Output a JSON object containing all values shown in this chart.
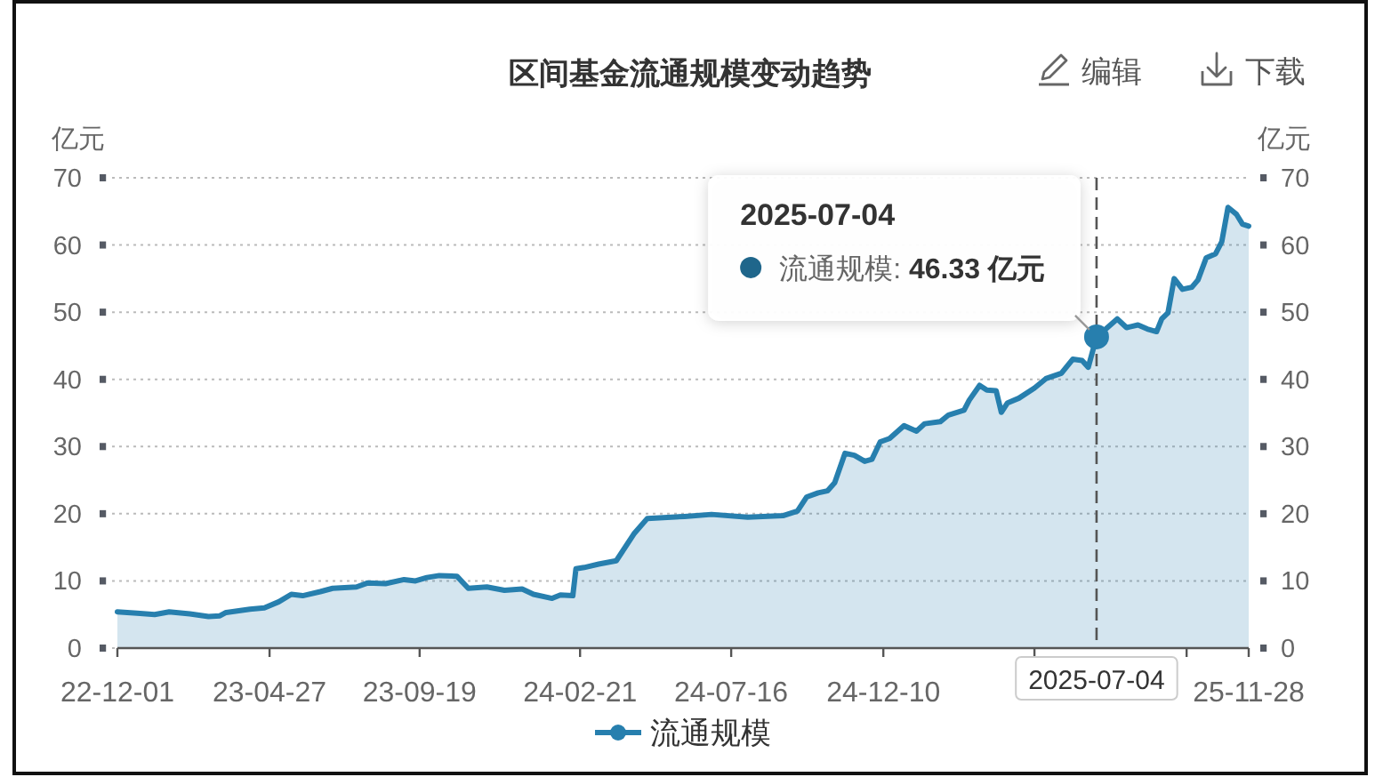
{
  "chart_data": {
    "type": "area",
    "title": "区间基金流通规模变动趋势",
    "ylabel": "亿元",
    "y2label": "亿元",
    "x": [
      "2022-12-01",
      "2022-12-20",
      "2023-01-06",
      "2023-01-20",
      "2023-02-09",
      "2023-02-27",
      "2023-03-10",
      "2023-03-16",
      "2023-04-08",
      "2023-04-22",
      "2023-05-06",
      "2023-05-18",
      "2023-05-29",
      "2023-06-15",
      "2023-06-27",
      "2023-07-20",
      "2023-07-31",
      "2023-08-17",
      "2023-09-04",
      "2023-09-15",
      "2023-09-26",
      "2023-10-08",
      "2023-10-25",
      "2023-11-05",
      "2023-11-23",
      "2023-12-10",
      "2023-12-27",
      "2024-01-07",
      "2024-01-25",
      "2024-02-02",
      "2024-02-14",
      "2024-02-17",
      "2024-02-25",
      "2024-03-10",
      "2024-03-27",
      "2024-04-13",
      "2024-04-26",
      "2024-06-01",
      "2024-06-27",
      "2024-08-01",
      "2024-09-04",
      "2024-09-18",
      "2024-09-27",
      "2024-10-08",
      "2024-10-17",
      "2024-10-24",
      "2024-11-03",
      "2024-11-12",
      "2024-11-22",
      "2024-11-29",
      "2024-12-07",
      "2024-12-16",
      "2024-12-30",
      "2025-01-11",
      "2025-01-19",
      "2025-02-03",
      "2025-02-11",
      "2025-02-26",
      "2025-03-03",
      "2025-03-13",
      "2025-03-20",
      "2025-03-29",
      "2025-04-03",
      "2025-04-09",
      "2025-04-20",
      "2025-05-05",
      "2025-05-16",
      "2025-05-31",
      "2025-06-11",
      "2025-06-20",
      "2025-06-26",
      "2025-07-04",
      "2025-07-13",
      "2025-07-24",
      "2025-08-02",
      "2025-08-13",
      "2025-08-22",
      "2025-08-31",
      "2025-09-05",
      "2025-09-11",
      "2025-09-17",
      "2025-09-25",
      "2025-10-04",
      "2025-10-10",
      "2025-10-18",
      "2025-10-27",
      "2025-11-02",
      "2025-11-08",
      "2025-11-16",
      "2025-11-22",
      "2025-11-28"
    ],
    "series": [
      {
        "name": "流通规模",
        "color": "#277fae",
        "values": [
          5.4,
          5.2,
          5.0,
          5.4,
          5.1,
          4.7,
          4.8,
          5.3,
          5.8,
          6.0,
          6.9,
          8.0,
          7.8,
          8.4,
          8.9,
          9.1,
          9.7,
          9.6,
          10.2,
          10.0,
          10.5,
          10.8,
          10.7,
          8.9,
          9.1,
          8.6,
          8.8,
          8.0,
          7.4,
          7.9,
          7.8,
          11.8,
          12.0,
          12.5,
          13.0,
          17.0,
          19.3,
          19.6,
          19.9,
          19.5,
          19.7,
          20.4,
          22.5,
          23.1,
          23.4,
          24.6,
          29.0,
          28.7,
          27.8,
          28.1,
          30.7,
          31.2,
          33.1,
          32.3,
          33.4,
          33.7,
          34.7,
          35.4,
          36.9,
          39.1,
          38.4,
          38.3,
          35.1,
          36.5,
          37.2,
          38.7,
          40.1,
          40.9,
          43.0,
          42.8,
          41.8,
          46.33,
          47.5,
          49.0,
          47.7,
          48.1,
          47.5,
          47.1,
          49.0,
          49.9,
          55.0,
          53.4,
          53.7,
          54.8,
          58.1,
          58.7,
          60.5,
          65.6,
          64.6,
          63.1,
          62.8
        ]
      }
    ],
    "xlim": [
      "2022-12-01",
      "2025-11-28"
    ],
    "xticks": [
      {
        "value": "2022-12-01",
        "label": "22-12-01"
      },
      {
        "value": "2023-04-27",
        "label": "23-04-27"
      },
      {
        "value": "2023-09-19",
        "label": "23-09-19"
      },
      {
        "value": "2024-02-21",
        "label": "24-02-21"
      },
      {
        "value": "2024-07-16",
        "label": "24-07-16"
      },
      {
        "value": "2024-12-10",
        "label": "24-12-10"
      },
      {
        "value": "2025-05-05",
        "label": null
      },
      {
        "value": "2025-09-29",
        "label": null
      },
      {
        "value": "2025-11-28",
        "label": "25-11-28"
      }
    ],
    "ylim": [
      0,
      70
    ],
    "yticks": [
      0,
      10,
      20,
      30,
      40,
      50,
      60,
      70
    ],
    "y2lim": [
      0,
      70
    ],
    "y2ticks": [
      0,
      10,
      20,
      30,
      40,
      50,
      60,
      70
    ],
    "grid": "y",
    "legend": "bottom",
    "ref_lines": [
      {
        "axis": "x",
        "value": "2025-07-04",
        "label": "2025-07-04",
        "color": "#555555",
        "line_style": "dashed"
      }
    ],
    "annotations": [
      {
        "text": "2025-07-04\n流通规模: 46.33 亿元",
        "x": "2025-07-04",
        "y": 46.33
      },
      "编辑",
      "下载"
    ]
  }
}
